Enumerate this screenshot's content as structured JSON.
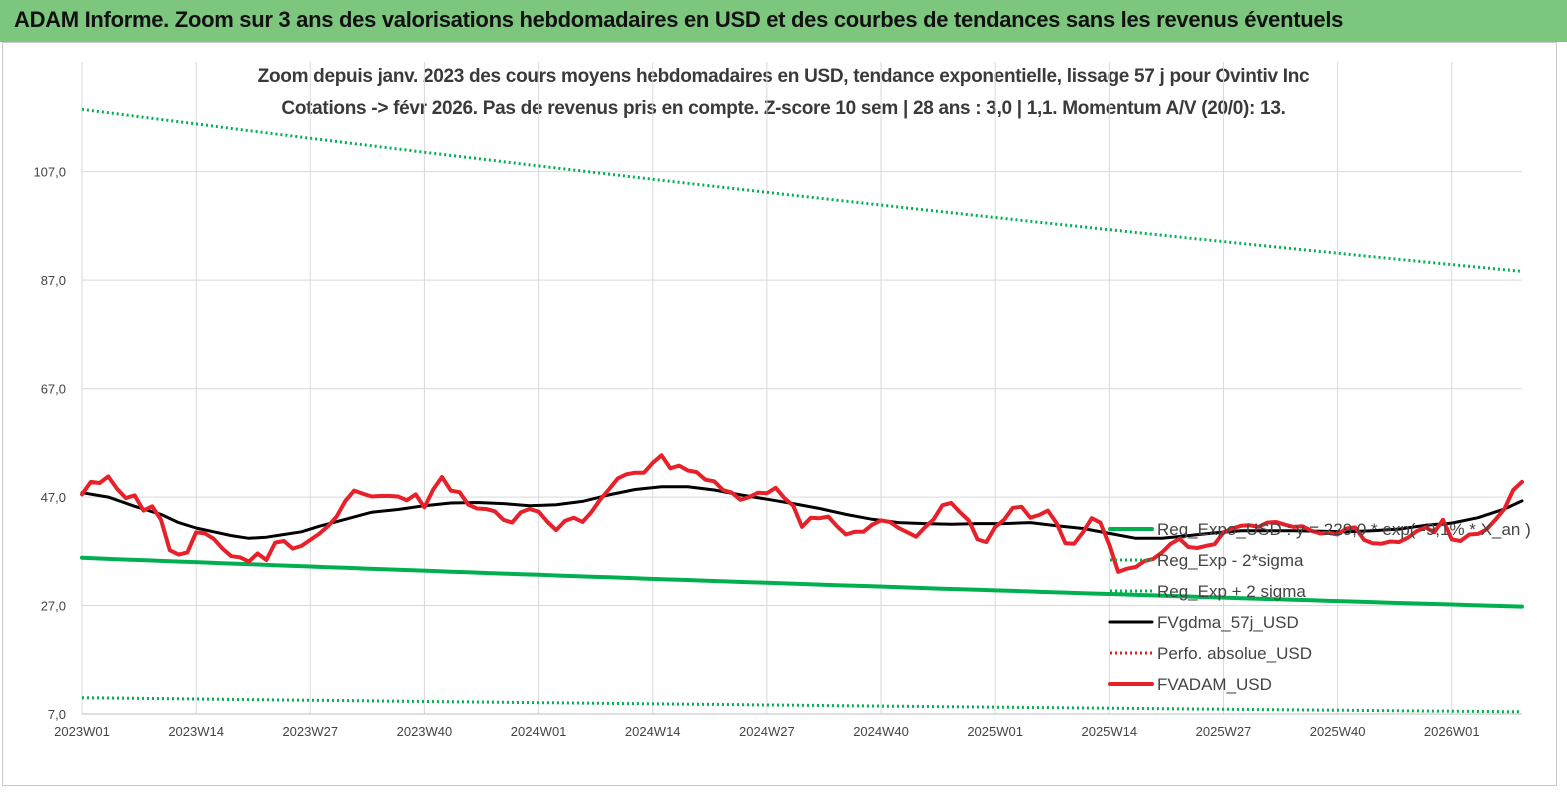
{
  "header": {
    "title": "ADAM Informe. Zoom sur 3 ans des valorisations hebdomadaires en USD et des courbes de tendances sans les revenus éventuels"
  },
  "chart_data": {
    "type": "line",
    "title_line1": "Zoom depuis janv. 2023 des cours moyens hebdomadaires en USD, tendance exponentielle, lissage 57 j pour Ovintiv Inc",
    "title_line2": "Cotations -> févr 2026.  Pas de revenus pris en compte. Z-score 10 sem  | 28 ans : 3,0 | 1,1. Momentum A/V (20/0): 13.",
    "ylim": [
      7,
      118
    ],
    "y_ticks": [
      7,
      27,
      47,
      67,
      87,
      107
    ],
    "y_tick_labels": [
      "7,0",
      "27,0",
      "47,0",
      "67,0",
      "87,0",
      "107,0"
    ],
    "x_ticks": [
      {
        "i": 0,
        "label": "2023W01"
      },
      {
        "i": 13,
        "label": "2023W14"
      },
      {
        "i": 26,
        "label": "2023W27"
      },
      {
        "i": 39,
        "label": "2023W40"
      },
      {
        "i": 52,
        "label": "2024W01"
      },
      {
        "i": 65,
        "label": "2024W14"
      },
      {
        "i": 78,
        "label": "2024W27"
      },
      {
        "i": 91,
        "label": "2024W40"
      },
      {
        "i": 104,
        "label": "2025W01"
      },
      {
        "i": 117,
        "label": "2025W14"
      },
      {
        "i": 130,
        "label": "2025W27"
      },
      {
        "i": 143,
        "label": "2025W40"
      },
      {
        "i": 156,
        "label": "2026W01"
      }
    ],
    "n_weeks": 165,
    "grid": true,
    "legend_position": "right",
    "series": [
      {
        "name": "Reg_Expo_USD : y = 229,0 * exp( -9,1% * X_an )",
        "color": "#00b050",
        "style": "solid-thick",
        "start": 35.8,
        "end": 26.8
      },
      {
        "name": "Reg_Exp - 2*sigma",
        "color": "#00b050",
        "style": "dotted",
        "start": 10.0,
        "end": 7.4
      },
      {
        "name": "Reg_Exp + 2 sigma",
        "color": "#00b050",
        "style": "dotted",
        "start": 118.5,
        "end": 88.6
      },
      {
        "name": "FVgdma_57j_USD",
        "color": "#000000",
        "style": "solid",
        "points": [
          [
            0,
            47.8
          ],
          [
            3,
            47
          ],
          [
            6,
            45.3
          ],
          [
            9,
            43.8
          ],
          [
            11,
            42.3
          ],
          [
            13,
            41.3
          ],
          [
            15,
            40.6
          ],
          [
            17,
            39.9
          ],
          [
            19,
            39.4
          ],
          [
            21,
            39.6
          ],
          [
            23,
            40.1
          ],
          [
            25,
            40.6
          ],
          [
            27,
            41.6
          ],
          [
            30,
            42.9
          ],
          [
            33,
            44.2
          ],
          [
            36,
            44.7
          ],
          [
            39,
            45.4
          ],
          [
            42,
            45.9
          ],
          [
            45,
            46
          ],
          [
            48,
            45.8
          ],
          [
            51,
            45.4
          ],
          [
            54,
            45.6
          ],
          [
            57,
            46.2
          ],
          [
            60,
            47.4
          ],
          [
            63,
            48.4
          ],
          [
            66,
            48.9
          ],
          [
            69,
            48.9
          ],
          [
            72,
            48.3
          ],
          [
            75,
            47.4
          ],
          [
            78,
            46.6
          ],
          [
            81,
            45.8
          ],
          [
            84,
            44.9
          ],
          [
            87,
            43.8
          ],
          [
            90,
            42.9
          ],
          [
            93,
            42.3
          ],
          [
            96,
            42.1
          ],
          [
            99,
            42
          ],
          [
            102,
            42.1
          ],
          [
            105,
            42.1
          ],
          [
            108,
            42.3
          ],
          [
            111,
            41.7
          ],
          [
            114,
            41.2
          ],
          [
            117,
            40.3
          ],
          [
            120,
            39.4
          ],
          [
            123,
            39.4
          ],
          [
            126,
            39.9
          ],
          [
            129,
            40.4
          ],
          [
            132,
            40.8
          ],
          [
            135,
            40.8
          ],
          [
            138,
            40.8
          ],
          [
            141,
            40.7
          ],
          [
            144,
            40.6
          ],
          [
            147,
            40.8
          ],
          [
            150,
            41.1
          ],
          [
            153,
            41.8
          ],
          [
            156,
            42.2
          ],
          [
            159,
            43.2
          ],
          [
            162,
            44.8
          ],
          [
            164,
            46.3
          ]
        ]
      },
      {
        "name": "Perfo. absolue_USD",
        "color": "#e02020",
        "style": "dotted",
        "points": []
      },
      {
        "name": "FVADAM_USD",
        "color": "#e8202a",
        "style": "solid-thick",
        "points": [
          [
            0,
            47.5
          ],
          [
            1,
            49.8
          ],
          [
            2,
            49.6
          ],
          [
            3,
            50.8
          ],
          [
            4,
            48.5
          ],
          [
            5,
            46.8
          ],
          [
            6,
            47.3
          ],
          [
            7,
            44.5
          ],
          [
            8,
            45.3
          ],
          [
            9,
            42.8
          ],
          [
            10,
            37.2
          ],
          [
            11,
            36.4
          ],
          [
            12,
            36.8
          ],
          [
            13,
            40.5
          ],
          [
            14,
            40.3
          ],
          [
            15,
            39.3
          ],
          [
            16,
            37.5
          ],
          [
            17,
            36.1
          ],
          [
            18,
            35.9
          ],
          [
            19,
            35.1
          ],
          [
            20,
            36.6
          ],
          [
            21,
            35.4
          ],
          [
            22,
            38.6
          ],
          [
            23,
            38.9
          ],
          [
            24,
            37.5
          ],
          [
            25,
            38
          ],
          [
            26,
            39.1
          ],
          [
            27,
            40.2
          ],
          [
            28,
            41.6
          ],
          [
            29,
            43.4
          ],
          [
            30,
            46.3
          ],
          [
            31,
            48.2
          ],
          [
            32,
            47.6
          ],
          [
            33,
            47.1
          ],
          [
            34,
            47.2
          ],
          [
            35,
            47.2
          ],
          [
            36,
            47.1
          ],
          [
            37,
            46.4
          ],
          [
            38,
            47.5
          ],
          [
            39,
            45.1
          ],
          [
            40,
            48.4
          ],
          [
            41,
            50.7
          ],
          [
            42,
            48.2
          ],
          [
            43,
            47.9
          ],
          [
            44,
            45.6
          ],
          [
            45,
            44.9
          ],
          [
            46,
            44.8
          ],
          [
            47,
            44.4
          ],
          [
            48,
            42.8
          ],
          [
            49,
            42.3
          ],
          [
            50,
            44.2
          ],
          [
            51,
            44.8
          ],
          [
            52,
            44.3
          ],
          [
            53,
            42.4
          ],
          [
            54,
            40.9
          ],
          [
            55,
            42.6
          ],
          [
            56,
            43.2
          ],
          [
            57,
            42.4
          ],
          [
            58,
            44.2
          ],
          [
            59,
            46.5
          ],
          [
            60,
            48.4
          ],
          [
            61,
            50.4
          ],
          [
            62,
            51.2
          ],
          [
            63,
            51.5
          ],
          [
            64,
            51.5
          ],
          [
            65,
            53.3
          ],
          [
            66,
            54.7
          ],
          [
            67,
            52.3
          ],
          [
            68,
            52.8
          ],
          [
            69,
            51.9
          ],
          [
            70,
            51.6
          ],
          [
            71,
            50.2
          ],
          [
            72,
            49.9
          ],
          [
            73,
            48.3
          ],
          [
            74,
            47.8
          ],
          [
            75,
            46.5
          ],
          [
            76,
            47
          ],
          [
            77,
            47.8
          ],
          [
            78,
            47.7
          ],
          [
            79,
            48.7
          ],
          [
            80,
            46.8
          ],
          [
            81,
            45.4
          ],
          [
            82,
            41.5
          ],
          [
            83,
            43.2
          ],
          [
            84,
            43.1
          ],
          [
            85,
            43.4
          ],
          [
            86,
            41.6
          ],
          [
            87,
            40.1
          ],
          [
            88,
            40.6
          ],
          [
            89,
            40.6
          ],
          [
            90,
            41.9
          ],
          [
            91,
            42.7
          ],
          [
            92,
            42.4
          ],
          [
            93,
            41.3
          ],
          [
            94,
            40.5
          ],
          [
            95,
            39.7
          ],
          [
            96,
            41.4
          ],
          [
            97,
            42.9
          ],
          [
            98,
            45.5
          ],
          [
            99,
            45.9
          ],
          [
            100,
            44.2
          ],
          [
            101,
            42.7
          ],
          [
            102,
            39.2
          ],
          [
            103,
            38.7
          ],
          [
            104,
            41.5
          ],
          [
            105,
            42.8
          ],
          [
            106,
            45
          ],
          [
            107,
            45.2
          ],
          [
            108,
            43.2
          ],
          [
            109,
            43.7
          ],
          [
            110,
            44.5
          ],
          [
            111,
            42.2
          ],
          [
            112,
            38.5
          ],
          [
            113,
            38.4
          ],
          [
            114,
            40.5
          ],
          [
            115,
            43.1
          ],
          [
            116,
            42.3
          ],
          [
            117,
            38.2
          ],
          [
            118,
            33.2
          ],
          [
            119,
            33.8
          ],
          [
            120,
            34.1
          ],
          [
            121,
            35.2
          ],
          [
            122,
            35.6
          ],
          [
            123,
            36.8
          ],
          [
            124,
            38.4
          ],
          [
            125,
            39.3
          ],
          [
            126,
            37.8
          ],
          [
            127,
            37.6
          ],
          [
            128,
            38
          ],
          [
            129,
            38.3
          ],
          [
            130,
            40.5
          ],
          [
            131,
            41.2
          ],
          [
            132,
            41.7
          ],
          [
            133,
            41.8
          ],
          [
            134,
            41.5
          ],
          [
            135,
            42.3
          ],
          [
            136,
            42.4
          ],
          [
            137,
            41.9
          ],
          [
            138,
            41.5
          ],
          [
            139,
            41.6
          ],
          [
            140,
            40.8
          ],
          [
            141,
            40.3
          ],
          [
            142,
            40.4
          ],
          [
            143,
            40.1
          ],
          [
            144,
            41.2
          ],
          [
            145,
            41.4
          ],
          [
            146,
            39.1
          ],
          [
            147,
            38.5
          ],
          [
            148,
            38.4
          ],
          [
            149,
            38.8
          ],
          [
            150,
            38.7
          ],
          [
            151,
            39.5
          ],
          [
            152,
            40.7
          ],
          [
            153,
            41.4
          ],
          [
            154,
            40.5
          ],
          [
            155,
            42.8
          ],
          [
            156,
            39.2
          ],
          [
            157,
            38.9
          ],
          [
            158,
            40.1
          ],
          [
            159,
            40.2
          ],
          [
            160,
            41.1
          ],
          [
            161,
            42.9
          ],
          [
            162,
            44.8
          ],
          [
            163,
            48.3
          ],
          [
            164,
            49.8
          ]
        ]
      }
    ]
  }
}
